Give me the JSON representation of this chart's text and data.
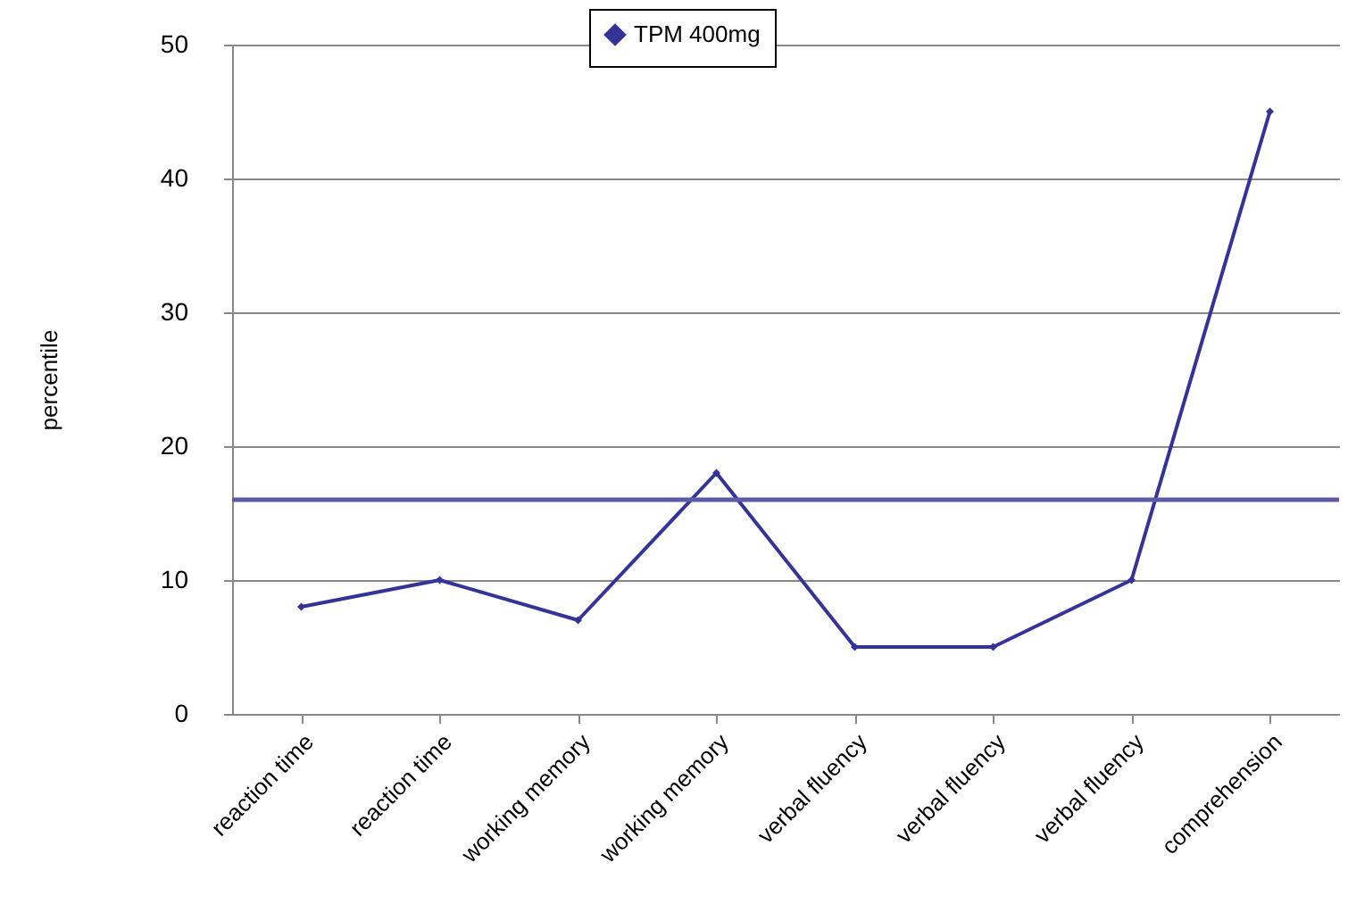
{
  "chart_data": {
    "type": "line",
    "ylabel": "percentile",
    "categories": [
      "reaction time",
      "reaction time",
      "working memory",
      "working memory",
      "verbal fluency",
      "verbal fluency",
      "verbal fluency",
      "comprehension"
    ],
    "series": [
      {
        "name": "TPM 400mg",
        "color": "#333399",
        "values": [
          8,
          10,
          7,
          18,
          5,
          5,
          10,
          45
        ]
      }
    ],
    "ylim": [
      0,
      50
    ],
    "yticks": [
      0,
      10,
      20,
      30,
      40,
      50
    ],
    "grid": "y",
    "legend": "top",
    "marker": "diamond",
    "line_style": "solid",
    "ref_lines": [
      {
        "axis": "y",
        "value": 16,
        "color": "#5b5ba8"
      }
    ]
  }
}
